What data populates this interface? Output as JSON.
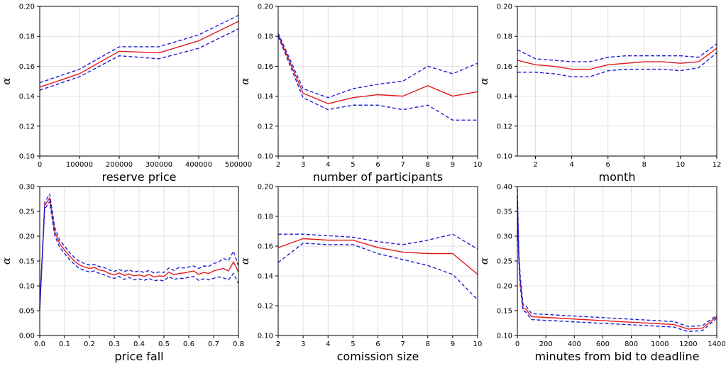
{
  "colors": {
    "mean": "#e41a1c",
    "bound": "#1f1fd6"
  },
  "chart_data": [
    {
      "type": "line",
      "xlabel": "reserve price",
      "ylabel": "α",
      "xlim": [
        0,
        500000
      ],
      "ylim": [
        0.1,
        0.2
      ],
      "xticks": [
        0,
        100000,
        200000,
        300000,
        400000,
        500000
      ],
      "xticklabels": [
        "0",
        "100000",
        "200000",
        "300000",
        "400000",
        "500000"
      ],
      "yticks": [
        0.1,
        0.12,
        0.14,
        0.16,
        0.18,
        0.2
      ],
      "yticklabels": [
        "0.10",
        "0.12",
        "0.14",
        "0.16",
        "0.18",
        "0.20"
      ],
      "grid": true,
      "series": [
        {
          "role": "mean",
          "style": "solid",
          "x": [
            0,
            100000,
            200000,
            300000,
            400000,
            500000
          ],
          "y": [
            0.146,
            0.155,
            0.17,
            0.169,
            0.177,
            0.19
          ]
        },
        {
          "role": "upper",
          "style": "dashed",
          "x": [
            0,
            100000,
            200000,
            300000,
            400000,
            500000
          ],
          "y": [
            0.149,
            0.158,
            0.173,
            0.173,
            0.181,
            0.194
          ]
        },
        {
          "role": "lower",
          "style": "dashed",
          "x": [
            0,
            100000,
            200000,
            300000,
            400000,
            500000
          ],
          "y": [
            0.144,
            0.153,
            0.167,
            0.165,
            0.172,
            0.185
          ]
        }
      ]
    },
    {
      "type": "line",
      "xlabel": "number of participants",
      "ylabel": "α",
      "xlim": [
        2,
        10
      ],
      "ylim": [
        0.1,
        0.2
      ],
      "xticks": [
        2,
        3,
        4,
        5,
        6,
        7,
        8,
        9,
        10
      ],
      "xticklabels": [
        "2",
        "3",
        "4",
        "5",
        "6",
        "7",
        "8",
        "9",
        "10"
      ],
      "yticks": [
        0.1,
        0.12,
        0.14,
        0.16,
        0.18,
        0.2
      ],
      "yticklabels": [
        "0.10",
        "0.12",
        "0.14",
        "0.16",
        "0.18",
        "0.20"
      ],
      "grid": true,
      "series": [
        {
          "role": "mean",
          "style": "solid",
          "x": [
            2,
            3,
            4,
            5,
            6,
            7,
            8,
            9,
            10
          ],
          "y": [
            0.181,
            0.142,
            0.135,
            0.139,
            0.141,
            0.14,
            0.147,
            0.14,
            0.143
          ]
        },
        {
          "role": "upper",
          "style": "dashed",
          "x": [
            2,
            3,
            4,
            5,
            6,
            7,
            8,
            9,
            10
          ],
          "y": [
            0.182,
            0.145,
            0.139,
            0.145,
            0.148,
            0.15,
            0.16,
            0.155,
            0.162
          ]
        },
        {
          "role": "lower",
          "style": "dashed",
          "x": [
            2,
            3,
            4,
            5,
            6,
            7,
            8,
            9,
            10
          ],
          "y": [
            0.18,
            0.139,
            0.131,
            0.134,
            0.134,
            0.131,
            0.134,
            0.124,
            0.124
          ]
        }
      ]
    },
    {
      "type": "line",
      "xlabel": "month",
      "ylabel": "α",
      "xlim": [
        1,
        12
      ],
      "ylim": [
        0.1,
        0.2
      ],
      "xticks": [
        2,
        4,
        6,
        8,
        10,
        12
      ],
      "xticklabels": [
        "2",
        "4",
        "6",
        "8",
        "10",
        "12"
      ],
      "yticks": [
        0.1,
        0.12,
        0.14,
        0.16,
        0.18,
        0.2
      ],
      "yticklabels": [
        "0.10",
        "0.12",
        "0.14",
        "0.16",
        "0.18",
        "0.20"
      ],
      "grid": true,
      "series": [
        {
          "role": "mean",
          "style": "solid",
          "x": [
            1,
            2,
            3,
            4,
            5,
            6,
            7,
            8,
            9,
            10,
            11,
            12
          ],
          "y": [
            0.164,
            0.161,
            0.16,
            0.158,
            0.158,
            0.161,
            0.162,
            0.163,
            0.163,
            0.162,
            0.163,
            0.172
          ]
        },
        {
          "role": "upper",
          "style": "dashed",
          "x": [
            1,
            2,
            3,
            4,
            5,
            6,
            7,
            8,
            9,
            10,
            11,
            12
          ],
          "y": [
            0.171,
            0.165,
            0.164,
            0.163,
            0.163,
            0.166,
            0.167,
            0.167,
            0.167,
            0.167,
            0.166,
            0.175
          ]
        },
        {
          "role": "lower",
          "style": "dashed",
          "x": [
            1,
            2,
            3,
            4,
            5,
            6,
            7,
            8,
            9,
            10,
            11,
            12
          ],
          "y": [
            0.156,
            0.156,
            0.155,
            0.153,
            0.153,
            0.157,
            0.158,
            0.158,
            0.158,
            0.157,
            0.159,
            0.169
          ]
        }
      ]
    },
    {
      "type": "line",
      "xlabel": "price fall",
      "ylabel": "α",
      "xlim": [
        0,
        0.8
      ],
      "ylim": [
        0.0,
        0.3
      ],
      "xticks": [
        0.0,
        0.1,
        0.2,
        0.3,
        0.4,
        0.5,
        0.6,
        0.7,
        0.8
      ],
      "xticklabels": [
        "0.0",
        "0.1",
        "0.2",
        "0.3",
        "0.4",
        "0.5",
        "0.6",
        "0.7",
        "0.8"
      ],
      "yticks": [
        0.0,
        0.05,
        0.1,
        0.15,
        0.2,
        0.25,
        0.3
      ],
      "yticklabels": [
        "0.00",
        "0.05",
        "0.10",
        "0.15",
        "0.20",
        "0.25",
        "0.30"
      ],
      "grid": true,
      "series": [
        {
          "role": "mean",
          "style": "solid",
          "x": [
            0.0,
            0.02,
            0.04,
            0.06,
            0.08,
            0.1,
            0.12,
            0.14,
            0.16,
            0.18,
            0.2,
            0.22,
            0.24,
            0.26,
            0.28,
            0.3,
            0.32,
            0.34,
            0.36,
            0.38,
            0.4,
            0.42,
            0.44,
            0.46,
            0.48,
            0.5,
            0.52,
            0.54,
            0.56,
            0.58,
            0.6,
            0.62,
            0.64,
            0.66,
            0.68,
            0.7,
            0.72,
            0.74,
            0.76,
            0.78,
            0.8
          ],
          "y": [
            0.055,
            0.262,
            0.277,
            0.21,
            0.185,
            0.172,
            0.16,
            0.15,
            0.142,
            0.138,
            0.135,
            0.137,
            0.132,
            0.13,
            0.125,
            0.122,
            0.126,
            0.121,
            0.124,
            0.12,
            0.122,
            0.119,
            0.123,
            0.118,
            0.12,
            0.119,
            0.128,
            0.122,
            0.125,
            0.126,
            0.128,
            0.13,
            0.123,
            0.127,
            0.125,
            0.13,
            0.133,
            0.135,
            0.13,
            0.148,
            0.128
          ]
        },
        {
          "role": "upper",
          "style": "dashed",
          "x": [
            0.0,
            0.02,
            0.04,
            0.06,
            0.08,
            0.1,
            0.12,
            0.14,
            0.16,
            0.18,
            0.2,
            0.22,
            0.24,
            0.26,
            0.28,
            0.3,
            0.32,
            0.34,
            0.36,
            0.38,
            0.4,
            0.42,
            0.44,
            0.46,
            0.48,
            0.5,
            0.52,
            0.54,
            0.56,
            0.58,
            0.6,
            0.62,
            0.64,
            0.66,
            0.68,
            0.7,
            0.72,
            0.74,
            0.76,
            0.78,
            0.8
          ],
          "y": [
            0.058,
            0.268,
            0.285,
            0.218,
            0.192,
            0.18,
            0.167,
            0.157,
            0.149,
            0.145,
            0.142,
            0.143,
            0.139,
            0.137,
            0.132,
            0.129,
            0.133,
            0.129,
            0.132,
            0.128,
            0.13,
            0.127,
            0.131,
            0.126,
            0.128,
            0.127,
            0.136,
            0.131,
            0.137,
            0.136,
            0.138,
            0.14,
            0.135,
            0.14,
            0.139,
            0.145,
            0.148,
            0.155,
            0.151,
            0.17,
            0.14
          ]
        },
        {
          "role": "lower",
          "style": "dashed",
          "x": [
            0.0,
            0.02,
            0.04,
            0.06,
            0.08,
            0.1,
            0.12,
            0.14,
            0.16,
            0.18,
            0.2,
            0.22,
            0.24,
            0.26,
            0.28,
            0.3,
            0.32,
            0.34,
            0.36,
            0.38,
            0.4,
            0.42,
            0.44,
            0.46,
            0.48,
            0.5,
            0.52,
            0.54,
            0.56,
            0.58,
            0.6,
            0.62,
            0.64,
            0.66,
            0.68,
            0.7,
            0.72,
            0.74,
            0.76,
            0.78,
            0.8
          ],
          "y": [
            0.052,
            0.255,
            0.27,
            0.202,
            0.178,
            0.165,
            0.153,
            0.143,
            0.135,
            0.131,
            0.128,
            0.13,
            0.125,
            0.122,
            0.118,
            0.115,
            0.119,
            0.113,
            0.117,
            0.112,
            0.114,
            0.111,
            0.115,
            0.11,
            0.112,
            0.11,
            0.119,
            0.113,
            0.115,
            0.115,
            0.117,
            0.119,
            0.111,
            0.114,
            0.112,
            0.115,
            0.118,
            0.116,
            0.112,
            0.125,
            0.105
          ]
        }
      ]
    },
    {
      "type": "line",
      "xlabel": "comission size",
      "ylabel": "α",
      "xlim": [
        2,
        10
      ],
      "ylim": [
        0.1,
        0.2
      ],
      "xticks": [
        2,
        3,
        4,
        5,
        6,
        7,
        8,
        9,
        10
      ],
      "xticklabels": [
        "2",
        "3",
        "4",
        "5",
        "6",
        "7",
        "8",
        "9",
        "10"
      ],
      "yticks": [
        0.1,
        0.12,
        0.14,
        0.16,
        0.18,
        0.2
      ],
      "yticklabels": [
        "0.10",
        "0.12",
        "0.14",
        "0.16",
        "0.18",
        "0.20"
      ],
      "grid": true,
      "series": [
        {
          "role": "mean",
          "style": "solid",
          "x": [
            2,
            3,
            4,
            5,
            6,
            7,
            8,
            9,
            10
          ],
          "y": [
            0.159,
            0.165,
            0.164,
            0.164,
            0.159,
            0.156,
            0.155,
            0.155,
            0.141
          ]
        },
        {
          "role": "upper",
          "style": "dashed",
          "x": [
            2,
            3,
            4,
            5,
            6,
            7,
            8,
            9,
            10
          ],
          "y": [
            0.168,
            0.168,
            0.167,
            0.166,
            0.163,
            0.161,
            0.164,
            0.168,
            0.158
          ]
        },
        {
          "role": "lower",
          "style": "dashed",
          "x": [
            2,
            3,
            4,
            5,
            6,
            7,
            8,
            9,
            10
          ],
          "y": [
            0.149,
            0.162,
            0.161,
            0.161,
            0.155,
            0.151,
            0.147,
            0.141,
            0.124
          ]
        }
      ]
    },
    {
      "type": "line",
      "xlabel": "minutes from bid to deadline",
      "ylabel": "α",
      "xlim": [
        0,
        1400
      ],
      "ylim": [
        0.1,
        0.4
      ],
      "xticks": [
        0,
        200,
        400,
        600,
        800,
        1000,
        1200,
        1400
      ],
      "xticklabels": [
        "0",
        "200",
        "400",
        "600",
        "800",
        "1000",
        "1200",
        "1400"
      ],
      "yticks": [
        0.1,
        0.15,
        0.2,
        0.25,
        0.3,
        0.35,
        0.4
      ],
      "yticklabels": [
        "0.10",
        "0.15",
        "0.20",
        "0.25",
        "0.30",
        "0.35",
        "0.40"
      ],
      "grid": true,
      "series": [
        {
          "role": "mean",
          "style": "solid",
          "x": [
            0,
            10,
            20,
            40,
            60,
            100,
            1100,
            1200,
            1300,
            1400
          ],
          "y": [
            0.38,
            0.26,
            0.21,
            0.155,
            0.153,
            0.138,
            0.122,
            0.113,
            0.115,
            0.138
          ]
        },
        {
          "role": "upper",
          "style": "dashed",
          "x": [
            0,
            10,
            20,
            40,
            60,
            100,
            1100,
            1200,
            1300,
            1400
          ],
          "y": [
            0.395,
            0.27,
            0.22,
            0.162,
            0.16,
            0.144,
            0.128,
            0.118,
            0.12,
            0.141
          ]
        },
        {
          "role": "lower",
          "style": "dashed",
          "x": [
            0,
            10,
            20,
            40,
            60,
            100,
            1100,
            1200,
            1300,
            1400
          ],
          "y": [
            0.365,
            0.25,
            0.2,
            0.15,
            0.147,
            0.132,
            0.117,
            0.108,
            0.11,
            0.135
          ]
        }
      ]
    }
  ]
}
